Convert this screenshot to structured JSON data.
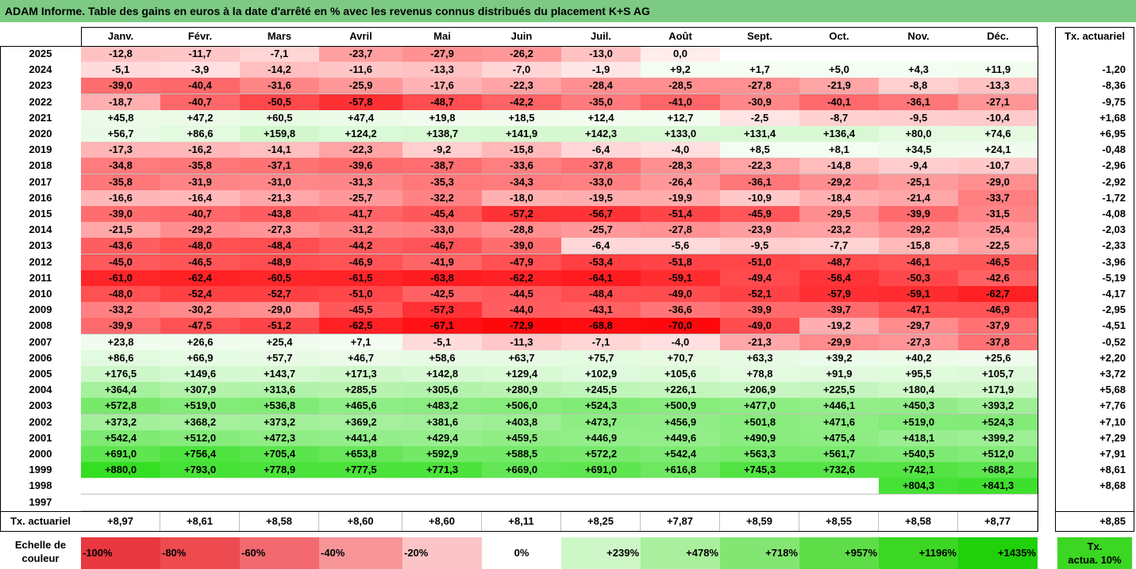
{
  "title": "ADAM Informe. Table des gains en euros à la date d'arrêté en % avec les revenus connus distribués du placement K+S AG",
  "months": [
    "Janv.",
    "Févr.",
    "Mars",
    "Avril",
    "Mai",
    "Juin",
    "Juil.",
    "Août",
    "Sept.",
    "Oct.",
    "Nov.",
    "Déc."
  ],
  "tx_header": "Tx. actuariel",
  "rows": [
    {
      "year": "2025",
      "vals": [
        "-12,8",
        "-11,7",
        "-7,1",
        "-23,7",
        "-27,9",
        "-26,2",
        "-13,0",
        "0,0",
        "",
        "",
        "",
        ""
      ],
      "tx": ""
    },
    {
      "year": "2024",
      "vals": [
        "-5,1",
        "-3,9",
        "-14,2",
        "-11,6",
        "-13,3",
        "-7,0",
        "-1,9",
        "+9,2",
        "+1,7",
        "+5,0",
        "+4,3",
        "+11,9"
      ],
      "tx": "-1,20"
    },
    {
      "year": "2023",
      "vals": [
        "-39,0",
        "-40,4",
        "-31,6",
        "-25,9",
        "-17,6",
        "-22,3",
        "-28,4",
        "-28,5",
        "-27,8",
        "-21,9",
        "-8,8",
        "-13,3"
      ],
      "tx": "-8,36"
    },
    {
      "year": "2022",
      "vals": [
        "-18,7",
        "-40,7",
        "-50,5",
        "-57,8",
        "-48,7",
        "-42,2",
        "-35,0",
        "-41,0",
        "-30,9",
        "-40,1",
        "-36,1",
        "-27,1"
      ],
      "tx": "-9,75"
    },
    {
      "year": "2021",
      "vals": [
        "+45,8",
        "+47,2",
        "+60,5",
        "+47,4",
        "+19,8",
        "+18,5",
        "+12,4",
        "+12,7",
        "-2,5",
        "-8,7",
        "-9,5",
        "-10,4"
      ],
      "tx": "+1,68"
    },
    {
      "year": "2020",
      "vals": [
        "+56,7",
        "+86,6",
        "+159,8",
        "+124,2",
        "+138,7",
        "+141,9",
        "+142,3",
        "+133,0",
        "+131,4",
        "+136,4",
        "+80,0",
        "+74,6"
      ],
      "tx": "+6,95"
    },
    {
      "year": "2019",
      "vals": [
        "-17,3",
        "-16,2",
        "-14,1",
        "-22,3",
        "-9,2",
        "-15,8",
        "-6,4",
        "-4,0",
        "+8,5",
        "+8,1",
        "+34,5",
        "+24,1"
      ],
      "tx": "-0,48"
    },
    {
      "year": "2018",
      "vals": [
        "-34,8",
        "-35,8",
        "-37,1",
        "-39,6",
        "-38,7",
        "-33,6",
        "-37,8",
        "-28,3",
        "-22,3",
        "-14,8",
        "-9,4",
        "-10,7"
      ],
      "tx": "-2,96"
    },
    {
      "year": "2017",
      "vals": [
        "-35,8",
        "-31,9",
        "-31,0",
        "-31,3",
        "-35,3",
        "-34,3",
        "-33,0",
        "-26,4",
        "-36,1",
        "-29,2",
        "-25,1",
        "-29,0"
      ],
      "tx": "-2,92"
    },
    {
      "year": "2016",
      "vals": [
        "-16,6",
        "-16,4",
        "-21,3",
        "-25,7",
        "-32,2",
        "-18,0",
        "-19,5",
        "-19,9",
        "-10,9",
        "-18,4",
        "-21,4",
        "-33,7"
      ],
      "tx": "-1,72"
    },
    {
      "year": "2015",
      "vals": [
        "-39,0",
        "-40,7",
        "-43,8",
        "-41,7",
        "-45,4",
        "-57,2",
        "-56,7",
        "-51,4",
        "-45,9",
        "-29,5",
        "-39,9",
        "-31,5"
      ],
      "tx": "-4,08"
    },
    {
      "year": "2014",
      "vals": [
        "-21,5",
        "-29,2",
        "-27,3",
        "-31,2",
        "-33,0",
        "-28,8",
        "-25,7",
        "-27,8",
        "-23,9",
        "-23,2",
        "-29,2",
        "-25,4"
      ],
      "tx": "-2,03"
    },
    {
      "year": "2013",
      "vals": [
        "-43,6",
        "-48,0",
        "-48,4",
        "-44,2",
        "-46,7",
        "-39,0",
        "-6,4",
        "-5,6",
        "-9,5",
        "-7,7",
        "-15,8",
        "-22,5"
      ],
      "tx": "-2,33"
    },
    {
      "year": "2012",
      "vals": [
        "-45,0",
        "-46,5",
        "-48,9",
        "-46,9",
        "-41,9",
        "-47,9",
        "-53,4",
        "-51,8",
        "-51,0",
        "-48,7",
        "-46,1",
        "-46,5"
      ],
      "tx": "-3,96"
    },
    {
      "year": "2011",
      "vals": [
        "-61,0",
        "-62,4",
        "-60,5",
        "-61,5",
        "-63,8",
        "-62,2",
        "-64,1",
        "-59,1",
        "-49,4",
        "-56,4",
        "-50,3",
        "-42,6"
      ],
      "tx": "-5,19"
    },
    {
      "year": "2010",
      "vals": [
        "-48,0",
        "-52,4",
        "-52,7",
        "-51,0",
        "-42,5",
        "-44,5",
        "-48,4",
        "-49,0",
        "-52,1",
        "-57,9",
        "-59,1",
        "-62,7"
      ],
      "tx": "-4,17"
    },
    {
      "year": "2009",
      "vals": [
        "-33,2",
        "-30,2",
        "-29,0",
        "-45,5",
        "-57,3",
        "-44,0",
        "-43,1",
        "-36,6",
        "-39,9",
        "-39,7",
        "-47,1",
        "-46,9"
      ],
      "tx": "-2,95"
    },
    {
      "year": "2008",
      "vals": [
        "-39,9",
        "-47,5",
        "-51,2",
        "-62,5",
        "-67,1",
        "-72,9",
        "-68,8",
        "-70,0",
        "-49,0",
        "-19,2",
        "-29,7",
        "-37,9"
      ],
      "tx": "-4,51"
    },
    {
      "year": "2007",
      "vals": [
        "+23,8",
        "+26,6",
        "+25,4",
        "+7,1",
        "-5,1",
        "-11,3",
        "-7,1",
        "-4,0",
        "-21,3",
        "-29,9",
        "-27,3",
        "-37,8"
      ],
      "tx": "-0,52"
    },
    {
      "year": "2006",
      "vals": [
        "+86,6",
        "+66,9",
        "+57,7",
        "+46,7",
        "+58,6",
        "+63,7",
        "+75,7",
        "+70,7",
        "+63,3",
        "+39,2",
        "+40,2",
        "+25,6"
      ],
      "tx": "+2,20"
    },
    {
      "year": "2005",
      "vals": [
        "+176,5",
        "+149,6",
        "+143,7",
        "+171,3",
        "+142,8",
        "+129,4",
        "+102,9",
        "+105,6",
        "+78,8",
        "+91,9",
        "+95,5",
        "+105,7"
      ],
      "tx": "+3,72"
    },
    {
      "year": "2004",
      "vals": [
        "+364,4",
        "+307,9",
        "+313,6",
        "+285,5",
        "+305,6",
        "+280,9",
        "+245,5",
        "+226,1",
        "+206,9",
        "+225,5",
        "+180,4",
        "+171,9"
      ],
      "tx": "+5,68"
    },
    {
      "year": "2003",
      "vals": [
        "+572,8",
        "+519,0",
        "+536,8",
        "+465,6",
        "+483,2",
        "+506,0",
        "+524,3",
        "+500,9",
        "+477,0",
        "+446,1",
        "+450,3",
        "+393,2"
      ],
      "tx": "+7,76"
    },
    {
      "year": "2002",
      "vals": [
        "+373,2",
        "+368,2",
        "+373,2",
        "+369,2",
        "+381,6",
        "+403,8",
        "+473,7",
        "+456,9",
        "+501,8",
        "+471,6",
        "+519,0",
        "+524,3"
      ],
      "tx": "+7,10"
    },
    {
      "year": "2001",
      "vals": [
        "+542,4",
        "+512,0",
        "+472,3",
        "+441,4",
        "+429,4",
        "+459,5",
        "+446,9",
        "+449,6",
        "+490,9",
        "+475,4",
        "+418,1",
        "+399,2"
      ],
      "tx": "+7,29"
    },
    {
      "year": "2000",
      "vals": [
        "+691,0",
        "+756,4",
        "+705,4",
        "+653,8",
        "+592,9",
        "+588,5",
        "+572,2",
        "+542,4",
        "+563,3",
        "+561,7",
        "+540,5",
        "+512,0"
      ],
      "tx": "+7,91"
    },
    {
      "year": "1999",
      "vals": [
        "+880,0",
        "+793,0",
        "+778,9",
        "+777,5",
        "+771,3",
        "+669,0",
        "+691,0",
        "+616,8",
        "+745,3",
        "+732,6",
        "+742,1",
        "+688,2"
      ],
      "tx": "+8,61"
    },
    {
      "year": "1998",
      "vals": [
        "",
        "",
        "",
        "",
        "",
        "",
        "",
        "",
        "",
        "",
        "+804,3",
        "+841,3"
      ],
      "tx": "+8,68"
    },
    {
      "year": "1997",
      "vals": [
        "",
        "",
        "",
        "",
        "",
        "",
        "",
        "",
        "",
        "",
        "",
        ""
      ],
      "tx": ""
    }
  ],
  "footer": {
    "label": "Tx. actuariel",
    "vals": [
      "+8,97",
      "+8,61",
      "+8,58",
      "+8,60",
      "+8,60",
      "+8,11",
      "+8,25",
      "+7,87",
      "+8,59",
      "+8,55",
      "+8,58",
      "+8,77"
    ],
    "tx": "+8,85"
  },
  "scale": {
    "label_line1": "Echelle de",
    "label_line2": "couleur",
    "items": [
      {
        "text": "-100%",
        "color": "#e9383f",
        "align": "left"
      },
      {
        "text": "-80%",
        "color": "#ee4b51",
        "align": "left"
      },
      {
        "text": "-60%",
        "color": "#f26a6f",
        "align": "left"
      },
      {
        "text": "-40%",
        "color": "#f79599",
        "align": "left"
      },
      {
        "text": "-20%",
        "color": "#fbc5c7",
        "align": "left"
      },
      {
        "text": "0%",
        "color": "#ffffff",
        "align": "center"
      },
      {
        "text": "+239%",
        "color": "#cdf7c6",
        "align": "right"
      },
      {
        "text": "+478%",
        "color": "#a9ef9d",
        "align": "right"
      },
      {
        "text": "+718%",
        "color": "#84e672",
        "align": "right"
      },
      {
        "text": "+957%",
        "color": "#5fdd49",
        "align": "right"
      },
      {
        "text": "+1196%",
        "color": "#3bd722",
        "align": "right"
      },
      {
        "text": "+1435%",
        "color": "#1fd00a",
        "align": "right"
      }
    ],
    "tx_line1": "Tx.",
    "tx_line2": "actua. 10%",
    "tx_color": "#3bd722"
  }
}
